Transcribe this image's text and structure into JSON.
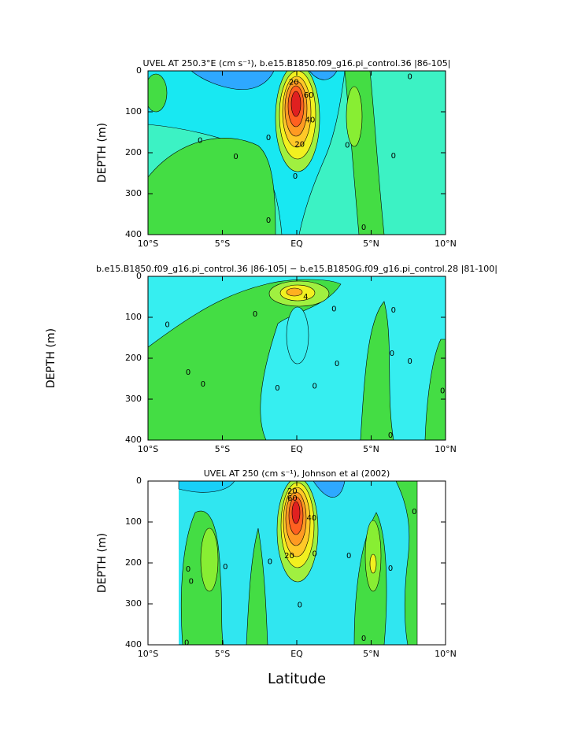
{
  "chart_data": [
    {
      "type": "contour",
      "title": "UVEL AT 250.3°E (cm s⁻¹), b.e15.B1850.f09_g16.pi_control.36 |86-105|",
      "ylabel": "DEPTH (m)",
      "xlim": [
        -10,
        10
      ],
      "ylim": [
        400,
        0
      ],
      "xticks": [
        {
          "value": -10,
          "label": "10°S"
        },
        {
          "value": -5,
          "label": "5°S"
        },
        {
          "value": 0,
          "label": "EQ"
        },
        {
          "value": 5,
          "label": "5°N"
        },
        {
          "value": 10,
          "label": "10°N"
        }
      ],
      "yticks": [
        0,
        100,
        200,
        300,
        400
      ],
      "contour_labels": [
        {
          "value": 20,
          "x": -0.2,
          "y": 28
        },
        {
          "value": 60,
          "x": 0.8,
          "y": 60
        },
        {
          "value": 40,
          "x": 0.9,
          "y": 120
        },
        {
          "value": 20,
          "x": 0.2,
          "y": 180
        },
        {
          "value": 0,
          "x": -6.5,
          "y": 170
        },
        {
          "value": 0,
          "x": -4.1,
          "y": 210
        },
        {
          "value": 0,
          "x": -1.9,
          "y": 163
        },
        {
          "value": 0,
          "x": -1.9,
          "y": 365
        },
        {
          "value": 0,
          "x": -0.1,
          "y": 258
        },
        {
          "value": 0,
          "x": 3.4,
          "y": 182
        },
        {
          "value": 0,
          "x": 4.5,
          "y": 383
        },
        {
          "value": 0,
          "x": 6.5,
          "y": 208
        },
        {
          "value": 0,
          "x": 7.6,
          "y": 14
        }
      ]
    },
    {
      "type": "contour",
      "title": "b.e15.B1850.f09_g16.pi_control.36 |86-105| − b.e15.B1850G.f09_g16.pi_control.28 |81-100|",
      "ylabel": "DEPTH (m)",
      "xlim": [
        -10,
        10
      ],
      "ylim": [
        400,
        0
      ],
      "xticks": [
        {
          "value": -10,
          "label": "10°S"
        },
        {
          "value": -5,
          "label": "5°S"
        },
        {
          "value": 0,
          "label": "EQ"
        },
        {
          "value": 5,
          "label": "5°N"
        },
        {
          "value": 10,
          "label": "10°N"
        }
      ],
      "yticks": [
        0,
        100,
        200,
        300,
        400
      ],
      "contour_labels": [
        {
          "value": 4,
          "x": 0.6,
          "y": 50
        },
        {
          "value": 0,
          "x": -8.7,
          "y": 118
        },
        {
          "value": 0,
          "x": -7.3,
          "y": 235
        },
        {
          "value": 0,
          "x": -6.3,
          "y": 263
        },
        {
          "value": 0,
          "x": -2.8,
          "y": 92
        },
        {
          "value": 0,
          "x": -1.3,
          "y": 273
        },
        {
          "value": 0,
          "x": 1.2,
          "y": 268
        },
        {
          "value": 0,
          "x": 2.7,
          "y": 213
        },
        {
          "value": 0,
          "x": 2.5,
          "y": 80
        },
        {
          "value": 0,
          "x": 6.5,
          "y": 83
        },
        {
          "value": 0,
          "x": 6.4,
          "y": 188
        },
        {
          "value": 0,
          "x": 6.3,
          "y": 388
        },
        {
          "value": 0,
          "x": 7.6,
          "y": 208
        },
        {
          "value": 0,
          "x": 9.8,
          "y": 280
        }
      ]
    },
    {
      "type": "contour",
      "title": "UVEL AT 250 (cm s⁻¹), Johnson et al (2002)",
      "ylabel": "DEPTH (m)",
      "xlabel": "Latitude",
      "xlim": [
        -10,
        10
      ],
      "ylim": [
        400,
        0
      ],
      "xticks": [
        {
          "value": -10,
          "label": "10°S"
        },
        {
          "value": -5,
          "label": "5°S"
        },
        {
          "value": 0,
          "label": "EQ"
        },
        {
          "value": 5,
          "label": "5°N"
        },
        {
          "value": 10,
          "label": "10°N"
        }
      ],
      "yticks": [
        0,
        100,
        200,
        300,
        400
      ],
      "contour_labels": [
        {
          "value": 20,
          "x": -0.3,
          "y": 25
        },
        {
          "value": 60,
          "x": -0.3,
          "y": 42
        },
        {
          "value": 40,
          "x": 1.0,
          "y": 90
        },
        {
          "value": 20,
          "x": -0.5,
          "y": 183
        },
        {
          "value": 0,
          "x": -7.3,
          "y": 215
        },
        {
          "value": 0,
          "x": -7.1,
          "y": 245
        },
        {
          "value": 0,
          "x": -7.4,
          "y": 395
        },
        {
          "value": 0,
          "x": -4.8,
          "y": 210
        },
        {
          "value": 0,
          "x": -1.8,
          "y": 197
        },
        {
          "value": 0,
          "x": 0.2,
          "y": 303
        },
        {
          "value": 0,
          "x": 1.2,
          "y": 178
        },
        {
          "value": 0,
          "x": 3.5,
          "y": 183
        },
        {
          "value": 0,
          "x": 4.5,
          "y": 385
        },
        {
          "value": 0,
          "x": 6.3,
          "y": 213
        },
        {
          "value": 0,
          "x": 7.9,
          "y": 75
        }
      ]
    }
  ]
}
